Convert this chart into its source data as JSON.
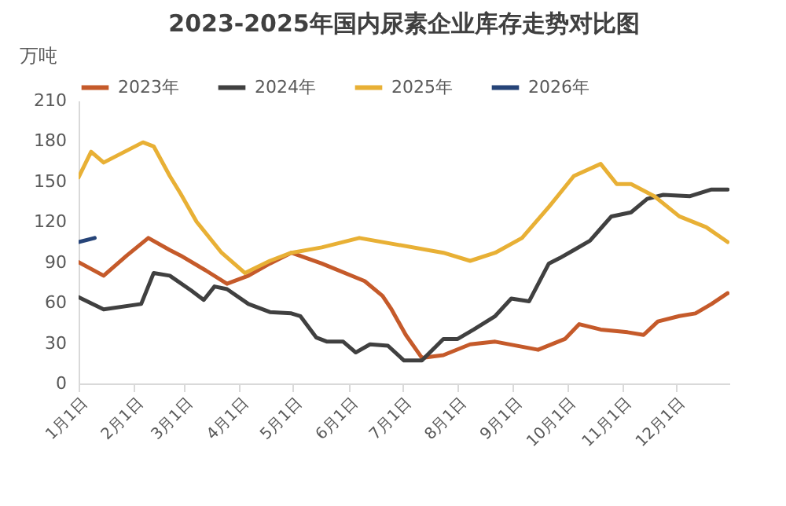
{
  "chart_data": {
    "type": "line",
    "title": "2023-2025年国内尿素企业库存走势对比图",
    "ylabel": "万吨",
    "xlim": [
      "--01-01",
      "--12-31"
    ],
    "xticks": [
      {
        "value": "--01-01",
        "label": "1月1日"
      },
      {
        "value": "--02-01",
        "label": "2月1日"
      },
      {
        "value": "--03-01",
        "label": "3月1日"
      },
      {
        "value": "--04-01",
        "label": "4月1日"
      },
      {
        "value": "--05-01",
        "label": "5月1日"
      },
      {
        "value": "--06-01",
        "label": "6月1日"
      },
      {
        "value": "--07-01",
        "label": "7月1日"
      },
      {
        "value": "--08-01",
        "label": "8月1日"
      },
      {
        "value": "--09-01",
        "label": "9月1日"
      },
      {
        "value": "--10-01",
        "label": "10月1日"
      },
      {
        "value": "--11-01",
        "label": "11月1日"
      },
      {
        "value": "--12-01",
        "label": "12月1日"
      }
    ],
    "ylim": [
      0,
      210
    ],
    "yticks": [
      0,
      30,
      60,
      90,
      120,
      150,
      180,
      210
    ],
    "grid": false,
    "legend": "top",
    "series": [
      {
        "name": "2023年",
        "color": "#c55a2a",
        "x": [
          "--01-01",
          "--01-15",
          "--01-28",
          "--02-09",
          "--02-21",
          "--02-27",
          "--03-13",
          "--03-25",
          "--04-06",
          "--04-18",
          "--04-30",
          "--05-17",
          "--06-10",
          "--06-20",
          "--06-25",
          "--07-03",
          "--07-12",
          "--07-24",
          "--08-08",
          "--08-22",
          "--09-15",
          "--09-30",
          "--10-08",
          "--10-20",
          "--11-04",
          "--11-13",
          "--11-21",
          "--12-03",
          "--12-12",
          "--12-21",
          "--12-30"
        ],
        "values": [
          90,
          80,
          95,
          108,
          99,
          95,
          84,
          74,
          80,
          89,
          97,
          89,
          76,
          65,
          55,
          36,
          19,
          21,
          29,
          31,
          25,
          33,
          44,
          40,
          38,
          36,
          46,
          50,
          52,
          59,
          67
        ]
      },
      {
        "name": "2024年",
        "color": "#404040",
        "x": [
          "--01-01",
          "--01-15",
          "--02-05",
          "--02-12",
          "--02-21",
          "--03-05",
          "--03-12",
          "--03-18",
          "--03-25",
          "--04-06",
          "--04-18",
          "--04-30",
          "--05-05",
          "--05-14",
          "--05-20",
          "--05-29",
          "--06-05",
          "--06-13",
          "--06-23",
          "--07-02",
          "--07-12",
          "--07-24",
          "--08-01",
          "--08-10",
          "--08-22",
          "--08-31",
          "--09-10",
          "--09-21",
          "--09-27",
          "--10-05",
          "--10-14",
          "--10-26",
          "--11-06",
          "--11-15",
          "--11-24",
          "--12-09",
          "--12-21",
          "--12-30"
        ],
        "values": [
          64,
          55,
          59,
          82,
          80,
          69,
          62,
          72,
          70,
          59,
          53,
          52,
          50,
          34,
          31,
          31,
          23,
          29,
          28,
          17,
          17,
          33,
          33,
          40,
          50,
          63,
          61,
          89,
          93,
          99,
          106,
          124,
          127,
          137,
          140,
          139,
          144,
          144
        ]
      },
      {
        "name": "2025年",
        "color": "#e8b035",
        "x": [
          "--01-01",
          "--01-08",
          "--01-15",
          "--02-06",
          "--02-12",
          "--02-21",
          "--02-27",
          "--03-08",
          "--03-22",
          "--04-04",
          "--04-18",
          "--04-30",
          "--05-17",
          "--06-07",
          "--07-24",
          "--08-08",
          "--08-22",
          "--09-06",
          "--09-21",
          "--10-05",
          "--10-20",
          "--10-29",
          "--11-06",
          "--11-19",
          "--12-03",
          "--12-18",
          "--12-30"
        ],
        "values": [
          153,
          172,
          164,
          179,
          176,
          154,
          141,
          120,
          97,
          82,
          91,
          97,
          101,
          108,
          97,
          91,
          97,
          108,
          131,
          154,
          163,
          148,
          148,
          139,
          124,
          116,
          105
        ]
      },
      {
        "name": "2026年",
        "color": "#264478",
        "x": [
          "--01-01",
          "--01-10"
        ],
        "values": [
          105,
          108
        ]
      }
    ]
  }
}
